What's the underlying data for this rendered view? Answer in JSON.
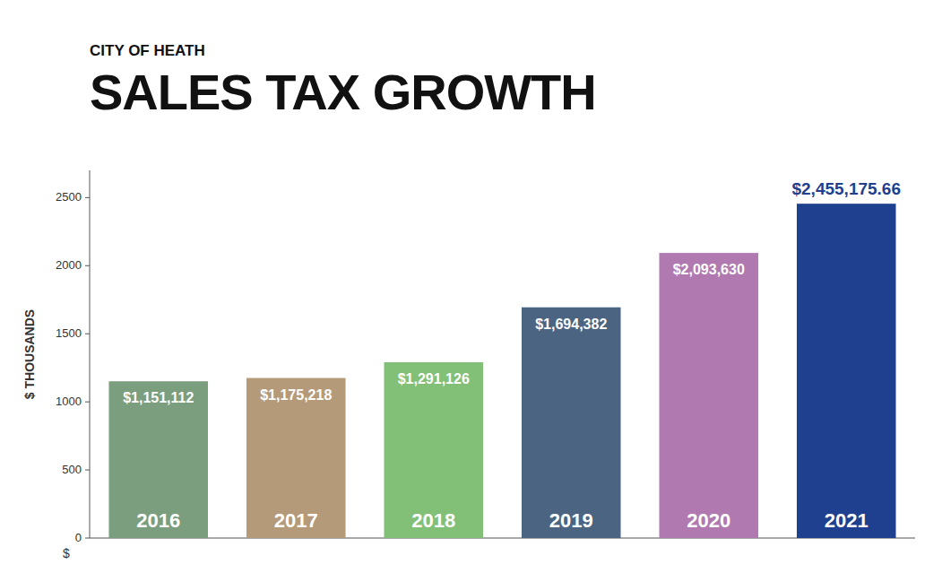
{
  "chart_data": {
    "type": "bar",
    "title": "SALES TAX GROWTH",
    "subtitle": "CITY OF HEATH",
    "y_label": "$ THOUSANDS",
    "annotations": [
      "$"
    ],
    "categories": [
      "2016",
      "2017",
      "2018",
      "2019",
      "2020",
      "2021"
    ],
    "values": [
      1151.112,
      1175.218,
      1291.126,
      1694.382,
      2093.63,
      2455.17566
    ],
    "value_labels": [
      "$1,151,112",
      "$1,175,218",
      "$1,291,126",
      "$1,694,382",
      "$2,093,630",
      "$2,455,175.66"
    ],
    "colors": [
      "#7a9e7e",
      "#b59a7a",
      "#82c077",
      "#4a6481",
      "#b07ab0",
      "#1f3f8f"
    ],
    "ylim": [
      0,
      2700
    ],
    "yticks": [
      0,
      500,
      1000,
      1500,
      2000,
      2500
    ],
    "grid": false,
    "data_labels": true
  }
}
